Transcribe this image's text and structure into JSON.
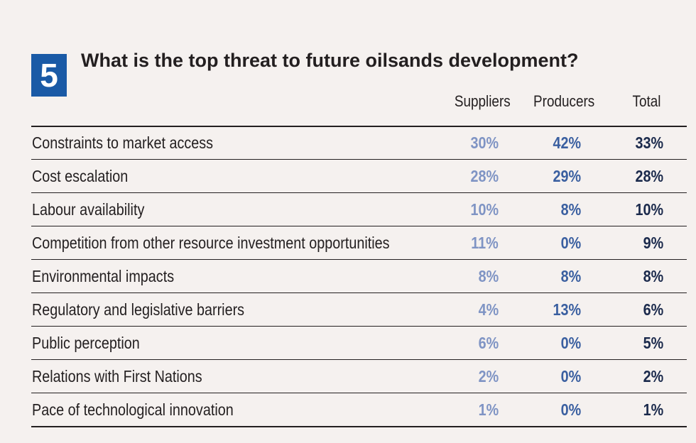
{
  "badge": "5",
  "chart_data": {
    "type": "table",
    "title": "What is the top threat to future oilsands development?",
    "columns": [
      "Suppliers",
      "Producers",
      "Total"
    ],
    "rows": [
      {
        "label": "Constraints to market access",
        "values": [
          "30%",
          "42%",
          "33%"
        ]
      },
      {
        "label": "Cost escalation",
        "values": [
          "28%",
          "29%",
          "28%"
        ]
      },
      {
        "label": "Labour availability",
        "values": [
          "10%",
          "8%",
          "10%"
        ]
      },
      {
        "label": "Competition from other resource investment opportunities",
        "values": [
          "11%",
          "0%",
          "9%"
        ]
      },
      {
        "label": "Environmental impacts",
        "values": [
          "8%",
          "8%",
          "8%"
        ]
      },
      {
        "label": "Regulatory and legislative barriers",
        "values": [
          "4%",
          "13%",
          "6%"
        ]
      },
      {
        "label": "Public perception",
        "values": [
          "6%",
          "0%",
          "5%"
        ]
      },
      {
        "label": "Relations with First Nations",
        "values": [
          "2%",
          "0%",
          "2%"
        ]
      },
      {
        "label": "Pace of technological innovation",
        "values": [
          "1%",
          "0%",
          "1%"
        ]
      }
    ],
    "colors": {
      "badge": "#1a5aa6",
      "suppliers": "#7f94c4",
      "producers": "#3a5fa0",
      "total": "#1b2a4c"
    }
  }
}
